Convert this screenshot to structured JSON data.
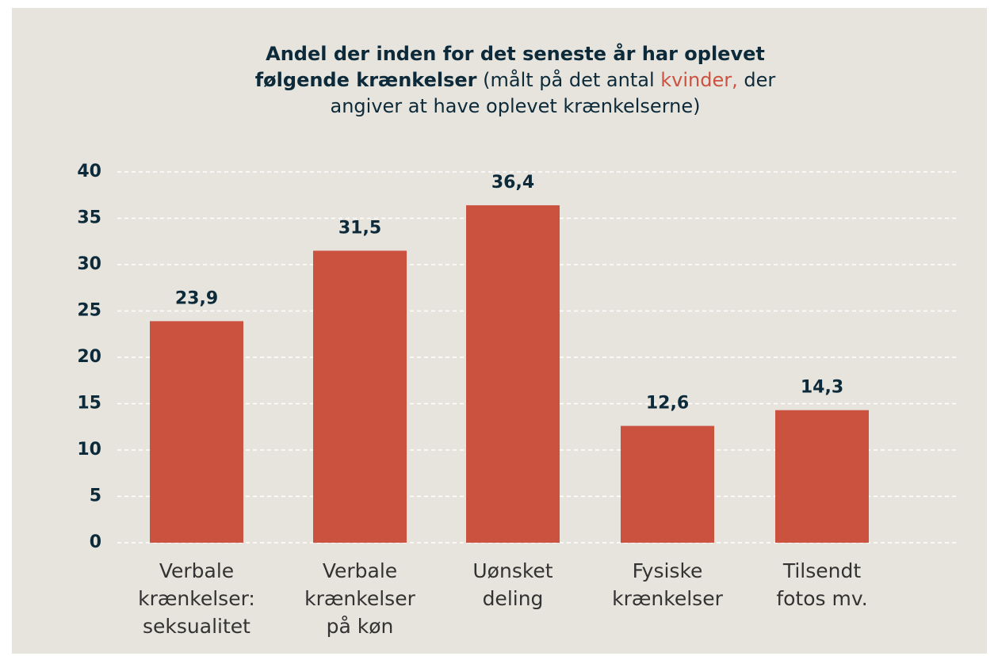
{
  "chart_data": {
    "type": "bar",
    "title": [
      "Andel der inden for det seneste år har oplevet",
      "følgende krænkelser",
      "(målt på det antal",
      "kvinder,",
      "der",
      "angiver at have oplevet krænkelserne)"
    ],
    "categories": [
      [
        "Verbale",
        "krænkelser:",
        "seksualitet"
      ],
      [
        "Verbale",
        "krænkelser",
        "på køn"
      ],
      [
        "Uønsket",
        "deling"
      ],
      [
        "Fysiske",
        "krænkelser"
      ],
      [
        "Tilsendt",
        "fotos mv."
      ]
    ],
    "values": [
      23.9,
      31.5,
      36.4,
      12.6,
      14.3
    ],
    "value_labels": [
      "23,9",
      "31,5",
      "36,4",
      "12,6",
      "14,3"
    ],
    "color": "#cc5240",
    "ylim": [
      0,
      40
    ],
    "yticks": [
      0,
      5,
      10,
      15,
      20,
      25,
      30,
      35,
      40
    ],
    "grid": true
  }
}
